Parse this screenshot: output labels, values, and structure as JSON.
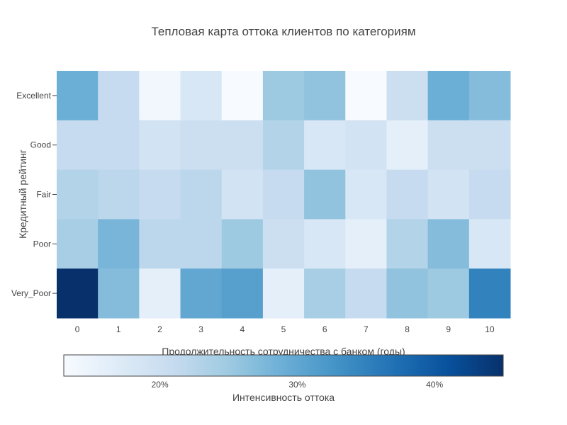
{
  "chart_data": {
    "type": "heatmap",
    "title": "Тепловая карта оттока клиентов по категориям",
    "xlabel": "Продолжительность сотрудничества с банком (годы)",
    "ylabel": "Кредитный рейтинг",
    "x": [
      "0",
      "1",
      "2",
      "3",
      "4",
      "5",
      "6",
      "7",
      "8",
      "9",
      "10"
    ],
    "y": [
      "Excellent",
      "Good",
      "Fair",
      "Poor",
      "Very_Poor"
    ],
    "z": [
      [
        29,
        21,
        14,
        18,
        13,
        25,
        26,
        13,
        20,
        29,
        27
      ],
      [
        21,
        21,
        19,
        20,
        20,
        23,
        18,
        19,
        16,
        20,
        20
      ],
      [
        23,
        22,
        21,
        22,
        19,
        21,
        26,
        18,
        21,
        19,
        21
      ],
      [
        24,
        28,
        22,
        22,
        25,
        20,
        18,
        16,
        23,
        27,
        18
      ],
      [
        45,
        27,
        16,
        30,
        31,
        16,
        24,
        21,
        26,
        25,
        35
      ]
    ],
    "colorscale": [
      "#f7fbff",
      "#deebf7",
      "#c6dbef",
      "#9ecae1",
      "#6baed6",
      "#4292c6",
      "#2171b5",
      "#08519c",
      "#08306b"
    ],
    "zmin": 13,
    "zmax": 45,
    "colorbar": {
      "title": "Интенсивность оттока",
      "ticks": [
        {
          "value": 20,
          "label": "20%"
        },
        {
          "value": 30,
          "label": "30%"
        },
        {
          "value": 40,
          "label": "40%"
        }
      ],
      "orientation": "horizontal"
    }
  }
}
